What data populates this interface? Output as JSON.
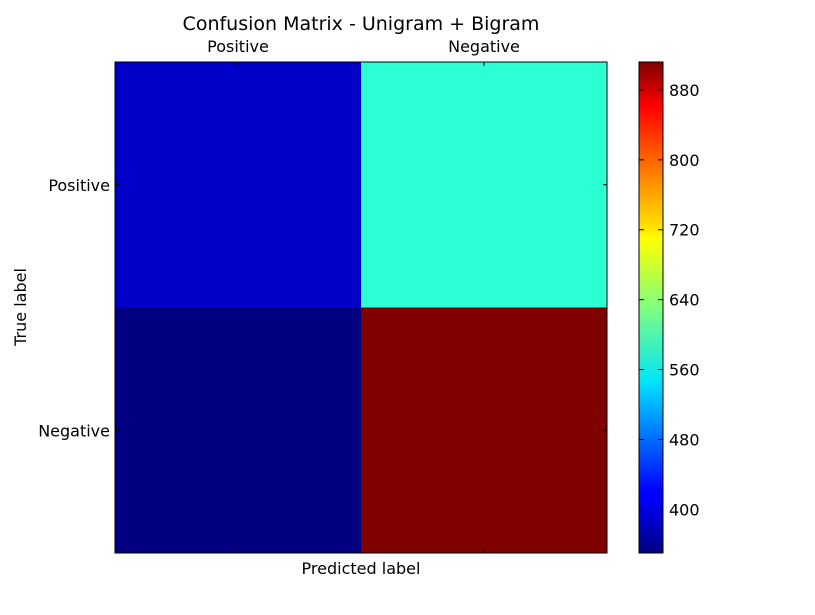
{
  "chart_data": {
    "type": "heatmap",
    "title": "Confusion Matrix - Unigram + Bigram",
    "xlabel": "Predicted label",
    "ylabel": "True label",
    "x_categories": [
      "Positive",
      "Negative"
    ],
    "y_categories": [
      "Positive",
      "Negative"
    ],
    "values": [
      [
        390,
        585
      ],
      [
        350,
        912
      ]
    ],
    "colormap": "jet",
    "colorbar": {
      "range": [
        350,
        912
      ],
      "ticks": [
        400,
        480,
        560,
        640,
        720,
        800,
        880
      ]
    },
    "grid": false,
    "x_tick_position": "top"
  }
}
